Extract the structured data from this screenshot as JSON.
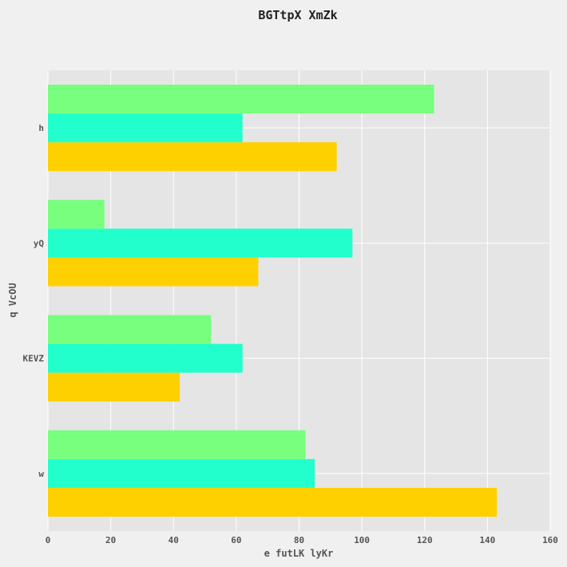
{
  "chart_data": {
    "type": "bar",
    "orientation": "horizontal",
    "title": "BGTtpX XmZk",
    "xlabel": "e futLK lyKr",
    "ylabel": "q VcOU",
    "categories": [
      "w",
      "KEVZ",
      "yQ",
      "h"
    ],
    "series": [
      {
        "values": [
          143,
          42,
          67,
          92
        ],
        "color": "#ffd000"
      },
      {
        "values": [
          85,
          62,
          97,
          62
        ],
        "color": "#22ffcc"
      },
      {
        "values": [
          82,
          52,
          18,
          123
        ],
        "color": "#77ff7d"
      }
    ],
    "xlim": [
      0,
      160
    ],
    "xticks": [
      0,
      20,
      40,
      60,
      80,
      100,
      120,
      140,
      160
    ],
    "grid": true,
    "legend": false,
    "plot_background": "#e5e5e5",
    "grid_color": "#ffffff"
  }
}
